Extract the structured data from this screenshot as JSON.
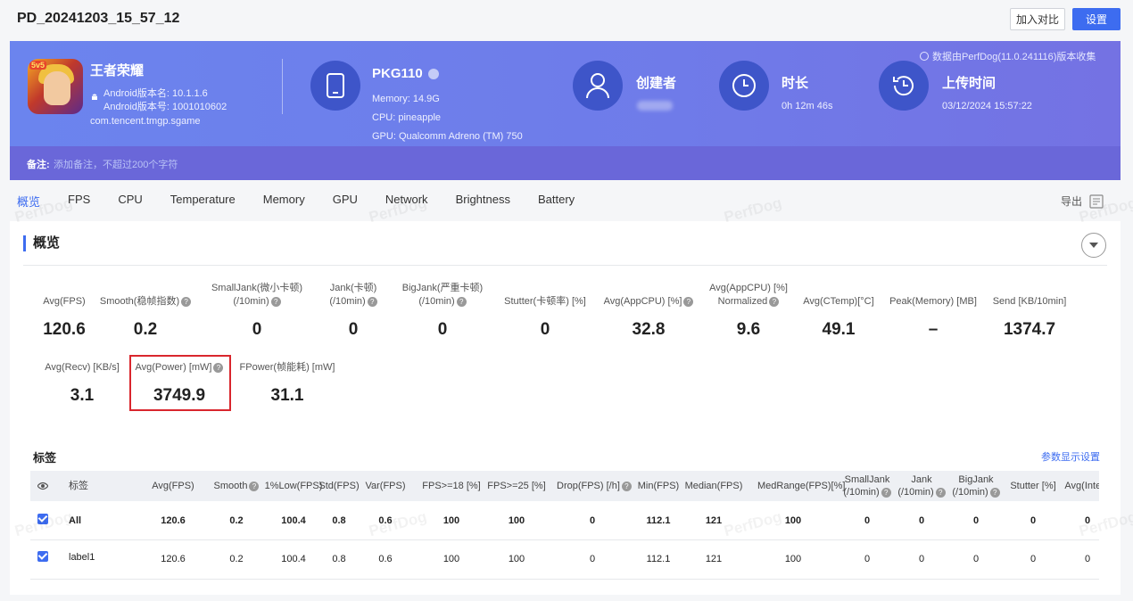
{
  "page_title": "PD_20241203_15_57_12",
  "buttons": {
    "compare": "加入对比",
    "settings": "设置"
  },
  "app": {
    "icon_tag": "5v5",
    "name": "王者荣耀",
    "version_name": "Android版本名: 10.1.1.6",
    "version_code": "Android版本号: 1001010602",
    "package": "com.tencent.tmgp.sgame"
  },
  "device": {
    "model": "PKG110",
    "memory": "Memory: 14.9G",
    "cpu": "CPU: pineapple",
    "gpu": "GPU: Qualcomm Adreno (TM) 750"
  },
  "creator": {
    "title": "创建者"
  },
  "duration": {
    "title": "时长",
    "value": "0h 12m 46s"
  },
  "upload": {
    "title": "上传时间",
    "value": "03/12/2024 15:57:22"
  },
  "source_note": "数据由PerfDog(11.0.241116)版本收集",
  "note": {
    "label": "备注:",
    "placeholder": "添加备注，不超过200个字符"
  },
  "tabs": [
    "概览",
    "FPS",
    "CPU",
    "Temperature",
    "Memory",
    "GPU",
    "Network",
    "Brightness",
    "Battery"
  ],
  "export_label": "导出",
  "overview": {
    "title": "概览",
    "metrics_row1": [
      {
        "l1": "",
        "l2": "Avg(FPS)",
        "help": false,
        "value": "120.6"
      },
      {
        "l1": "",
        "l2": "Smooth(稳帧指数)",
        "help": true,
        "value": "0.2"
      },
      {
        "l1": "SmallJank(微小卡顿)",
        "l2": "(/10min)",
        "help": true,
        "value": "0"
      },
      {
        "l1": "Jank(卡顿)",
        "l2": "(/10min)",
        "help": true,
        "value": "0"
      },
      {
        "l1": "BigJank(严重卡顿)",
        "l2": "(/10min)",
        "help": true,
        "value": "0"
      },
      {
        "l1": "",
        "l2": "Stutter(卡顿率) [%]",
        "help": false,
        "value": "0"
      },
      {
        "l1": "",
        "l2": "Avg(AppCPU) [%]",
        "help": true,
        "value": "32.8"
      },
      {
        "l1": "Avg(AppCPU) [%]",
        "l2": "Normalized",
        "help": true,
        "value": "9.6"
      },
      {
        "l1": "",
        "l2": "Avg(CTemp)[°C]",
        "help": false,
        "value": "49.1"
      },
      {
        "l1": "",
        "l2": "Peak(Memory) [MB]",
        "help": false,
        "value": "–"
      },
      {
        "l1": "",
        "l2": "Send [KB/10min]",
        "help": false,
        "value": "1374.7"
      }
    ],
    "metrics_row2": [
      {
        "l2": "Avg(Recv) [KB/s]",
        "help": false,
        "value": "3.1"
      },
      {
        "l2": "Avg(Power) [mW]",
        "help": true,
        "value": "3749.9"
      },
      {
        "l2": "FPower(帧能耗) [mW]",
        "help": false,
        "value": "31.1"
      }
    ]
  },
  "tags_section": {
    "title": "标签",
    "param_link": "参数显示设置",
    "columns": [
      {
        "l1": "标签",
        "l2": "",
        "help": false
      },
      {
        "l1": "Avg(FPS)",
        "l2": "",
        "help": false
      },
      {
        "l1": "Smooth",
        "l2": "",
        "help": true
      },
      {
        "l1": "1%Low(FPS)",
        "l2": "",
        "help": false
      },
      {
        "l1": "Std(FPS)",
        "l2": "",
        "help": false
      },
      {
        "l1": "Var(FPS)",
        "l2": "",
        "help": false
      },
      {
        "l1": "FPS>=18 [%]",
        "l2": "",
        "help": false
      },
      {
        "l1": "FPS>=25 [%]",
        "l2": "",
        "help": false
      },
      {
        "l1": "Drop(FPS) [/h]",
        "l2": "",
        "help": true
      },
      {
        "l1": "Min(FPS)",
        "l2": "",
        "help": false
      },
      {
        "l1": "Median(FPS)",
        "l2": "",
        "help": false
      },
      {
        "l1": "MedRange(FPS)[%]",
        "l2": "",
        "help": false
      },
      {
        "l1": "SmallJank",
        "l2": "(/10min)",
        "help": true
      },
      {
        "l1": "Jank",
        "l2": "(/10min)",
        "help": true
      },
      {
        "l1": "BigJank",
        "l2": "(/10min)",
        "help": true
      },
      {
        "l1": "Stutter [%]",
        "l2": "",
        "help": false
      },
      {
        "l1": "Avg(InterF",
        "l2": "",
        "help": false
      }
    ],
    "rows": [
      {
        "label": "All",
        "values": [
          "120.6",
          "0.2",
          "100.4",
          "0.8",
          "0.6",
          "100",
          "100",
          "0",
          "112.1",
          "121",
          "100",
          "0",
          "0",
          "0",
          "0",
          "0"
        ]
      },
      {
        "label": "label1",
        "values": [
          "120.6",
          "0.2",
          "100.4",
          "0.8",
          "0.6",
          "100",
          "100",
          "0",
          "112.1",
          "121",
          "100",
          "0",
          "0",
          "0",
          "0",
          "0"
        ]
      }
    ]
  },
  "watermark": "PerfDog"
}
